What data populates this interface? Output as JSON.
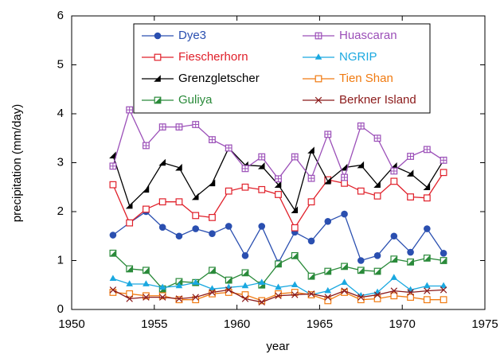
{
  "chart_data": {
    "type": "line",
    "xlabel": "year",
    "ylabel": "precipitation (mm/day)",
    "x": [
      1952.5,
      1953.5,
      1954.5,
      1955.5,
      1956.5,
      1957.5,
      1958.5,
      1959.5,
      1960.5,
      1961.5,
      1962.5,
      1963.5,
      1964.5,
      1965.5,
      1966.5,
      1967.5,
      1968.5,
      1969.5,
      1970.5,
      1971.5,
      1972.5
    ],
    "xlim": [
      1950,
      1975
    ],
    "xticks": [
      1950,
      1955,
      1960,
      1965,
      1970,
      1975
    ],
    "ylim": [
      0,
      6
    ],
    "yticks": [
      0,
      1,
      2,
      3,
      4,
      5,
      6
    ],
    "grid": false,
    "series": [
      {
        "name": "Dye3",
        "color": "#2a4fb0",
        "marker": "circle",
        "values": [
          1.52,
          1.77,
          2.0,
          1.68,
          1.5,
          1.65,
          1.55,
          1.7,
          1.1,
          1.7,
          0.95,
          1.58,
          1.4,
          1.8,
          1.95,
          1.0,
          1.1,
          1.5,
          1.17,
          1.65,
          1.15
        ]
      },
      {
        "name": "Fiescherhorn",
        "color": "#e0202a",
        "marker": "square",
        "values": [
          2.55,
          1.77,
          2.05,
          2.2,
          2.2,
          1.92,
          1.88,
          2.42,
          2.5,
          2.45,
          2.35,
          1.67,
          2.2,
          2.65,
          2.58,
          2.42,
          2.32,
          2.62,
          2.3,
          2.28,
          2.8
        ]
      },
      {
        "name": "Grenzgletscher",
        "color": "#000000",
        "marker": "triangle-left",
        "values": [
          3.15,
          2.12,
          2.45,
          3.0,
          2.9,
          2.3,
          2.58,
          3.3,
          2.95,
          2.93,
          2.55,
          2.03,
          3.25,
          2.62,
          2.9,
          2.95,
          2.55,
          2.93,
          2.78,
          2.5,
          3.05
        ]
      },
      {
        "name": "Guliya",
        "color": "#2a8a3a",
        "marker": "square-half",
        "values": [
          1.15,
          0.83,
          0.8,
          0.42,
          0.57,
          0.55,
          0.8,
          0.6,
          0.75,
          0.5,
          0.93,
          1.1,
          0.68,
          0.78,
          0.88,
          0.8,
          0.78,
          1.03,
          0.97,
          1.05,
          1.0
        ]
      },
      {
        "name": "Huascaran",
        "color": "#9b4fb8",
        "marker": "square-cross",
        "values": [
          2.93,
          4.08,
          3.35,
          3.73,
          3.73,
          3.78,
          3.47,
          3.3,
          2.88,
          3.12,
          2.67,
          3.12,
          2.68,
          3.58,
          2.7,
          3.75,
          3.5,
          2.83,
          3.13,
          3.27,
          3.05
        ]
      },
      {
        "name": "NGRIP",
        "color": "#1aa8e0",
        "marker": "triangle",
        "values": [
          0.63,
          0.52,
          0.52,
          0.45,
          0.48,
          0.55,
          0.42,
          0.45,
          0.48,
          0.55,
          0.45,
          0.5,
          0.3,
          0.38,
          0.55,
          0.28,
          0.35,
          0.65,
          0.4,
          0.48,
          0.48
        ]
      },
      {
        "name": "Tien Shan",
        "color": "#f07a10",
        "marker": "square",
        "values": [
          0.35,
          0.32,
          0.28,
          0.28,
          0.2,
          0.2,
          0.32,
          0.35,
          0.3,
          0.18,
          0.32,
          0.35,
          0.3,
          0.18,
          0.35,
          0.2,
          0.22,
          0.28,
          0.25,
          0.2,
          0.2
        ]
      },
      {
        "name": "Berkner Island",
        "color": "#8b1a1a",
        "marker": "x",
        "values": [
          0.4,
          0.22,
          0.25,
          0.25,
          0.22,
          0.25,
          0.35,
          0.4,
          0.22,
          0.15,
          0.28,
          0.3,
          0.32,
          0.25,
          0.38,
          0.25,
          0.3,
          0.38,
          0.35,
          0.38,
          0.4
        ]
      }
    ]
  }
}
